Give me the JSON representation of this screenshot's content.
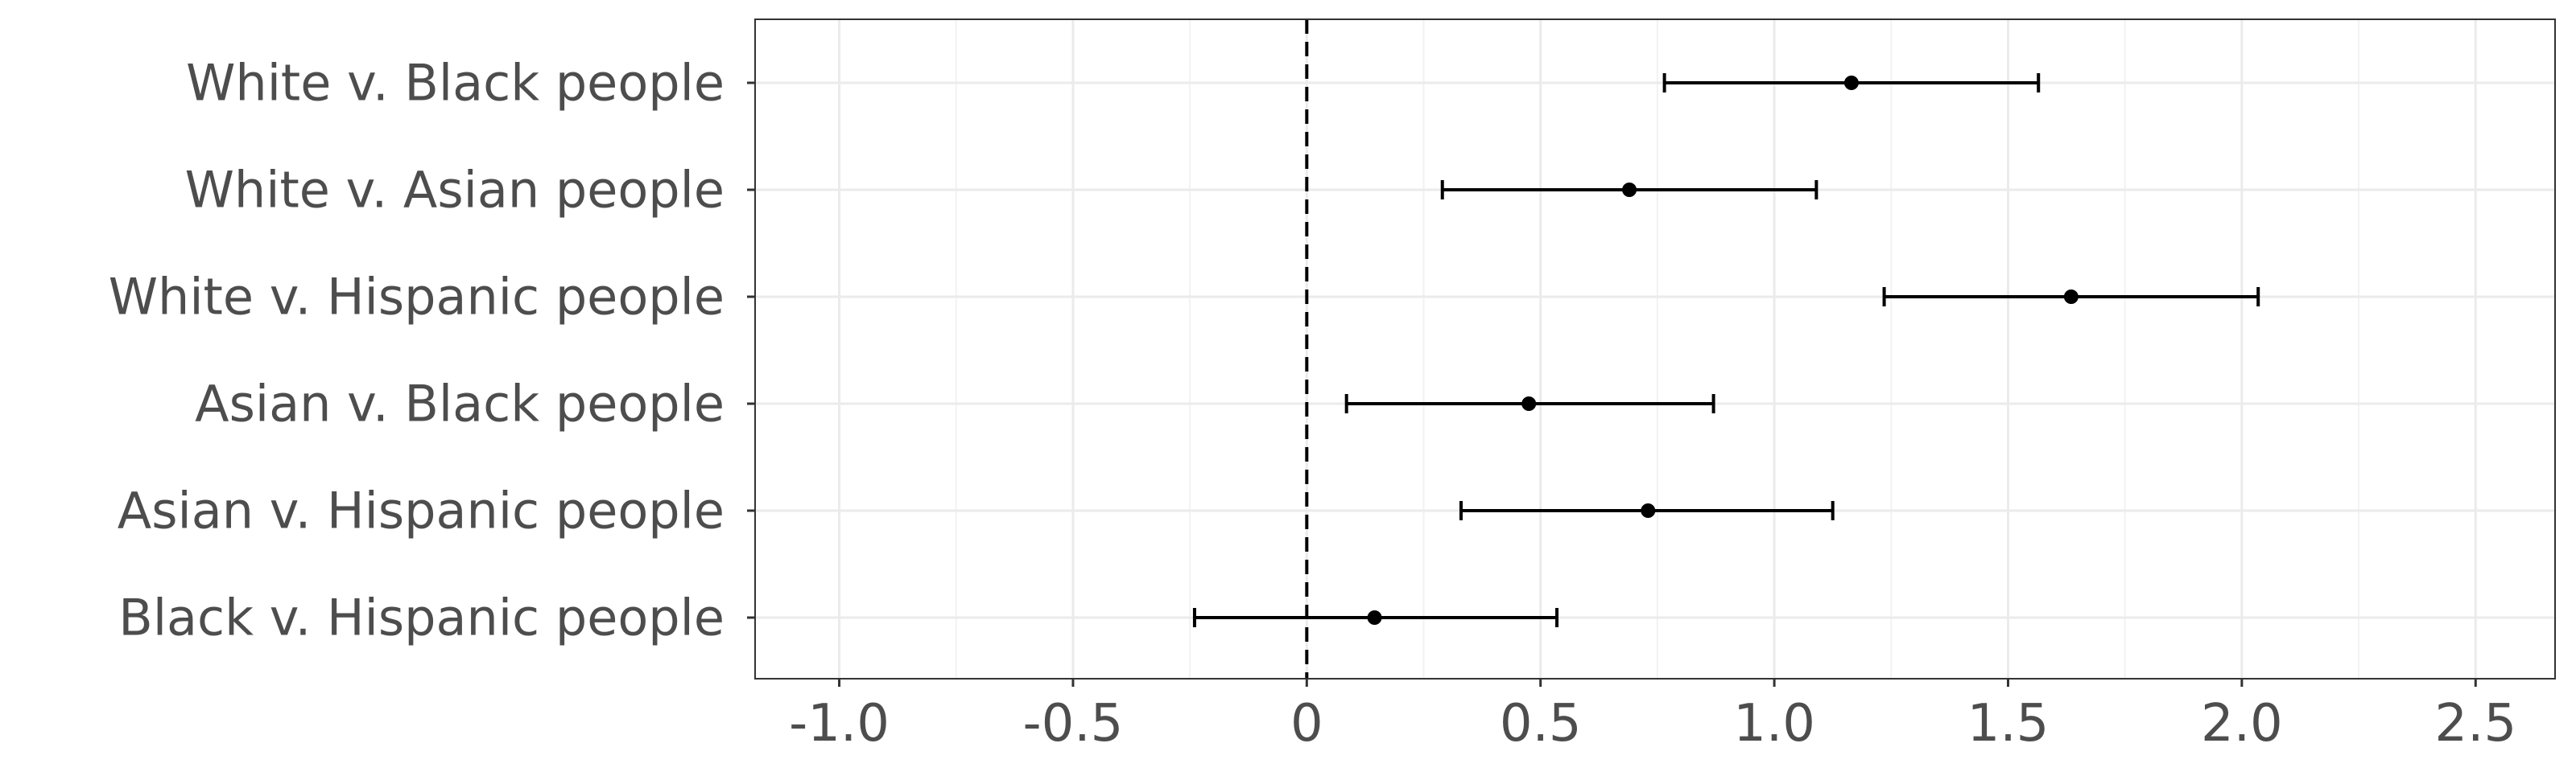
{
  "chart_data": {
    "type": "forest",
    "title": "",
    "xlabel": "",
    "ylabel": "",
    "xlim": [
      -1.18,
      2.67
    ],
    "x_ticks": [
      -1.0,
      -0.5,
      0,
      0.5,
      1.0,
      1.5,
      2.0,
      2.5
    ],
    "x_tick_labels": [
      "-1.0",
      "-0.5",
      "0",
      "0.5",
      "1.0",
      "1.5",
      "2.0",
      "2.5"
    ],
    "reference_line": 0,
    "grid": true,
    "categories": [
      "White v. Black people",
      "White v. Asian people",
      "White v. Hispanic people",
      "Asian v. Black people",
      "Asian v. Hispanic people",
      "Black v. Hispanic people"
    ],
    "estimates": [
      1.165,
      0.69,
      1.635,
      0.475,
      0.73,
      0.145
    ],
    "lower": [
      0.765,
      0.29,
      1.235,
      0.085,
      0.33,
      -0.24
    ],
    "upper": [
      1.565,
      1.09,
      2.035,
      0.87,
      1.125,
      0.535
    ]
  }
}
